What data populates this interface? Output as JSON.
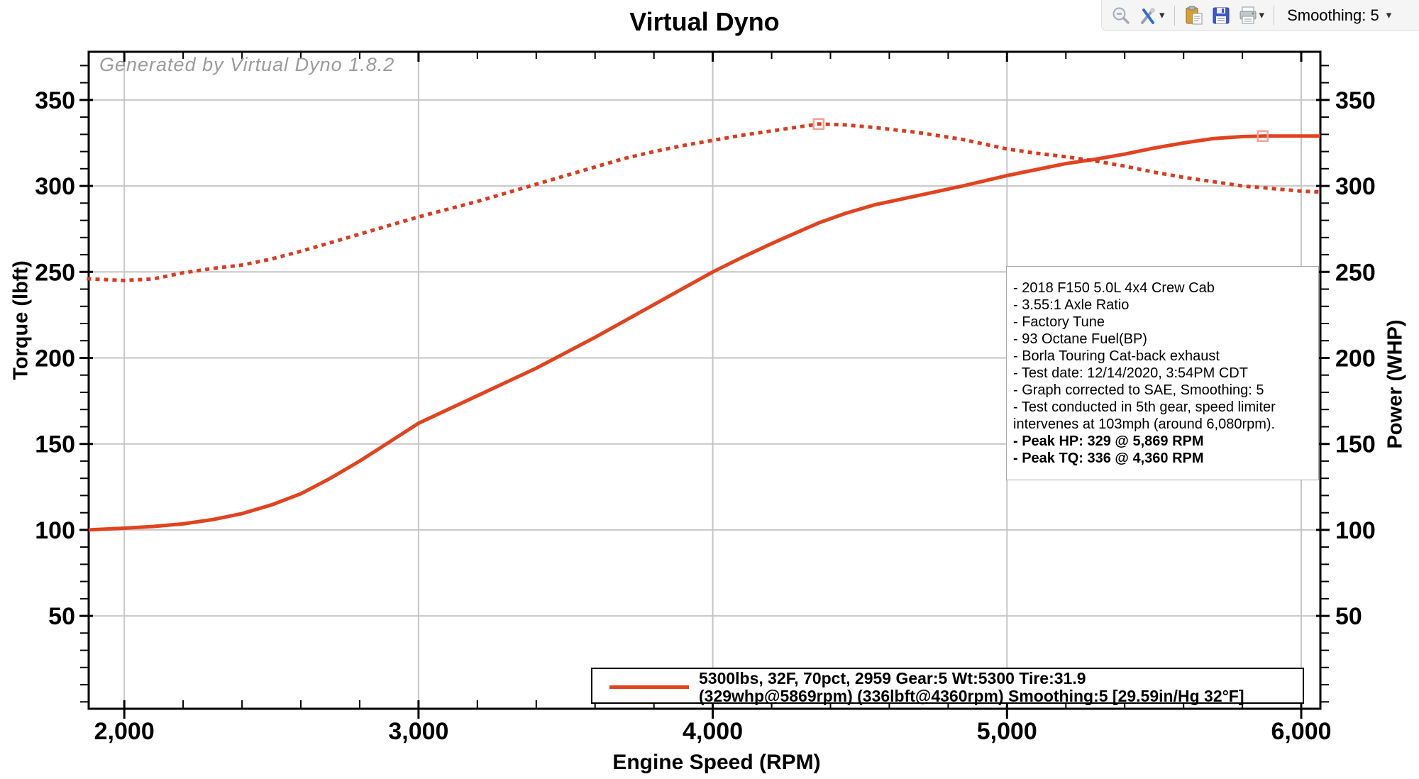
{
  "app": {
    "name": "Virtual Dyno"
  },
  "toolbar": {
    "buttons": [
      {
        "name": "zoom-out",
        "icon": "magnifier-minus-icon"
      },
      {
        "name": "tools",
        "icon": "tools-icon",
        "has_dropdown": true
      },
      {
        "name": "paste",
        "icon": "clipboard-paste-icon"
      },
      {
        "name": "save",
        "icon": "floppy-disk-icon"
      },
      {
        "name": "print",
        "icon": "printer-icon",
        "has_dropdown": true
      }
    ],
    "smoothing": {
      "label": "Smoothing: 5",
      "has_dropdown": true
    }
  },
  "chart_data": {
    "type": "line",
    "title": "Virtual Dyno",
    "xlabel": "Engine Speed (RPM)",
    "ylabel_left": "Torque (lbft)",
    "ylabel_right": "Power (WHP)",
    "watermark": "Generated by Virtual Dyno 1.8.2",
    "grid": true,
    "colors": {
      "grid": "#c6c6c6",
      "axis": "#000000",
      "curve": "#e2431f",
      "marker": "#f2a296"
    },
    "x_axis": {
      "min": 1879,
      "max": 6065,
      "minor_step": 200,
      "major_ticks": [
        {
          "value": 2000,
          "label": "2,000"
        },
        {
          "value": 3000,
          "label": "3,000"
        },
        {
          "value": 4000,
          "label": "4,000"
        },
        {
          "value": 5000,
          "label": "5,000"
        },
        {
          "value": 6000,
          "label": "6,000"
        }
      ]
    },
    "y_axis": {
      "min": -4,
      "max": 378,
      "minor_step": 10,
      "major_ticks": [
        {
          "value": 50,
          "label": "50"
        },
        {
          "value": 100,
          "label": "100"
        },
        {
          "value": 150,
          "label": "150"
        },
        {
          "value": 200,
          "label": "200"
        },
        {
          "value": 250,
          "label": "250"
        },
        {
          "value": 300,
          "label": "300"
        },
        {
          "value": 350,
          "label": "350"
        }
      ]
    },
    "series": [
      {
        "name": "Power (WHP)",
        "style": "solid",
        "color": "#e2431f",
        "peak": {
          "rpm": 5869,
          "value": 329
        },
        "points": [
          [
            1879,
            100
          ],
          [
            2000,
            101
          ],
          [
            2100,
            102
          ],
          [
            2200,
            103.5
          ],
          [
            2300,
            106
          ],
          [
            2400,
            109.5
          ],
          [
            2500,
            114.5
          ],
          [
            2600,
            121
          ],
          [
            2700,
            130
          ],
          [
            2800,
            140
          ],
          [
            2900,
            151
          ],
          [
            3000,
            162
          ],
          [
            3100,
            170
          ],
          [
            3200,
            178
          ],
          [
            3300,
            186
          ],
          [
            3400,
            194
          ],
          [
            3500,
            203
          ],
          [
            3600,
            212
          ],
          [
            3700,
            221.5
          ],
          [
            3800,
            231
          ],
          [
            3900,
            240.5
          ],
          [
            4000,
            250
          ],
          [
            4100,
            258.5
          ],
          [
            4200,
            266.5
          ],
          [
            4300,
            274
          ],
          [
            4360,
            278.5
          ],
          [
            4450,
            284
          ],
          [
            4550,
            289
          ],
          [
            4700,
            294.5
          ],
          [
            4850,
            300
          ],
          [
            5000,
            306
          ],
          [
            5100,
            309.5
          ],
          [
            5200,
            313
          ],
          [
            5300,
            315.5
          ],
          [
            5400,
            318.5
          ],
          [
            5500,
            322
          ],
          [
            5600,
            325
          ],
          [
            5700,
            327.5
          ],
          [
            5800,
            328.7
          ],
          [
            5869,
            329
          ],
          [
            6000,
            329
          ],
          [
            6065,
            329
          ]
        ]
      },
      {
        "name": "Torque (lbft)",
        "style": "dotted",
        "color": "#d93b20",
        "peak": {
          "rpm": 4360,
          "value": 336
        },
        "points": [
          [
            1879,
            246
          ],
          [
            2000,
            245
          ],
          [
            2100,
            246
          ],
          [
            2200,
            249.5
          ],
          [
            2300,
            252
          ],
          [
            2400,
            254
          ],
          [
            2500,
            257.5
          ],
          [
            2600,
            262
          ],
          [
            2700,
            267
          ],
          [
            2800,
            272
          ],
          [
            2900,
            277
          ],
          [
            3000,
            282
          ],
          [
            3100,
            286.5
          ],
          [
            3200,
            291
          ],
          [
            3300,
            296
          ],
          [
            3400,
            301
          ],
          [
            3500,
            306
          ],
          [
            3600,
            311
          ],
          [
            3700,
            316
          ],
          [
            3800,
            320
          ],
          [
            3900,
            323.5
          ],
          [
            4000,
            326.5
          ],
          [
            4100,
            329.5
          ],
          [
            4200,
            332
          ],
          [
            4300,
            334.5
          ],
          [
            4360,
            336
          ],
          [
            4450,
            335.5
          ],
          [
            4550,
            334
          ],
          [
            4700,
            331
          ],
          [
            4850,
            327
          ],
          [
            5000,
            321.5
          ],
          [
            5100,
            319
          ],
          [
            5200,
            317
          ],
          [
            5300,
            314.5
          ],
          [
            5400,
            311.5
          ],
          [
            5500,
            308
          ],
          [
            5600,
            305
          ],
          [
            5700,
            302.5
          ],
          [
            5800,
            300
          ],
          [
            5900,
            298.5
          ],
          [
            6000,
            297
          ],
          [
            6065,
            296.5
          ]
        ]
      }
    ],
    "annotation_lines": [
      {
        "text": "- 2018 F150 5.0L 4x4 Crew Cab",
        "bold": false
      },
      {
        "text": "- 3.55:1 Axle Ratio",
        "bold": false
      },
      {
        "text": "- Factory Tune",
        "bold": false
      },
      {
        "text": "- 93 Octane Fuel(BP)",
        "bold": false
      },
      {
        "text": "- Borla Touring Cat-back exhaust",
        "bold": false
      },
      {
        "text": "- Test date: 12/14/2020, 3:54PM CDT",
        "bold": false
      },
      {
        "text": "- Graph corrected to SAE, Smoothing: 5",
        "bold": false
      },
      {
        "text": "- Test conducted in 5th gear, speed limiter",
        "bold": false
      },
      {
        "text": "intervenes at 103mph (around 6,080rpm).",
        "bold": false
      },
      {
        "text": "- Peak HP: 329 @ 5,869 RPM",
        "bold": true
      },
      {
        "text": "- Peak TQ: 336 @ 4,360 RPM",
        "bold": true
      }
    ],
    "legend": {
      "line1": "5300lbs, 32F, 70pct, 2959 Gear:5 Wt:5300 Tire:31.9",
      "line2": "(329whp@5869rpm) (336lbft@4360rpm) Smoothing:5 [29.59in/Hg 32°F]"
    }
  }
}
